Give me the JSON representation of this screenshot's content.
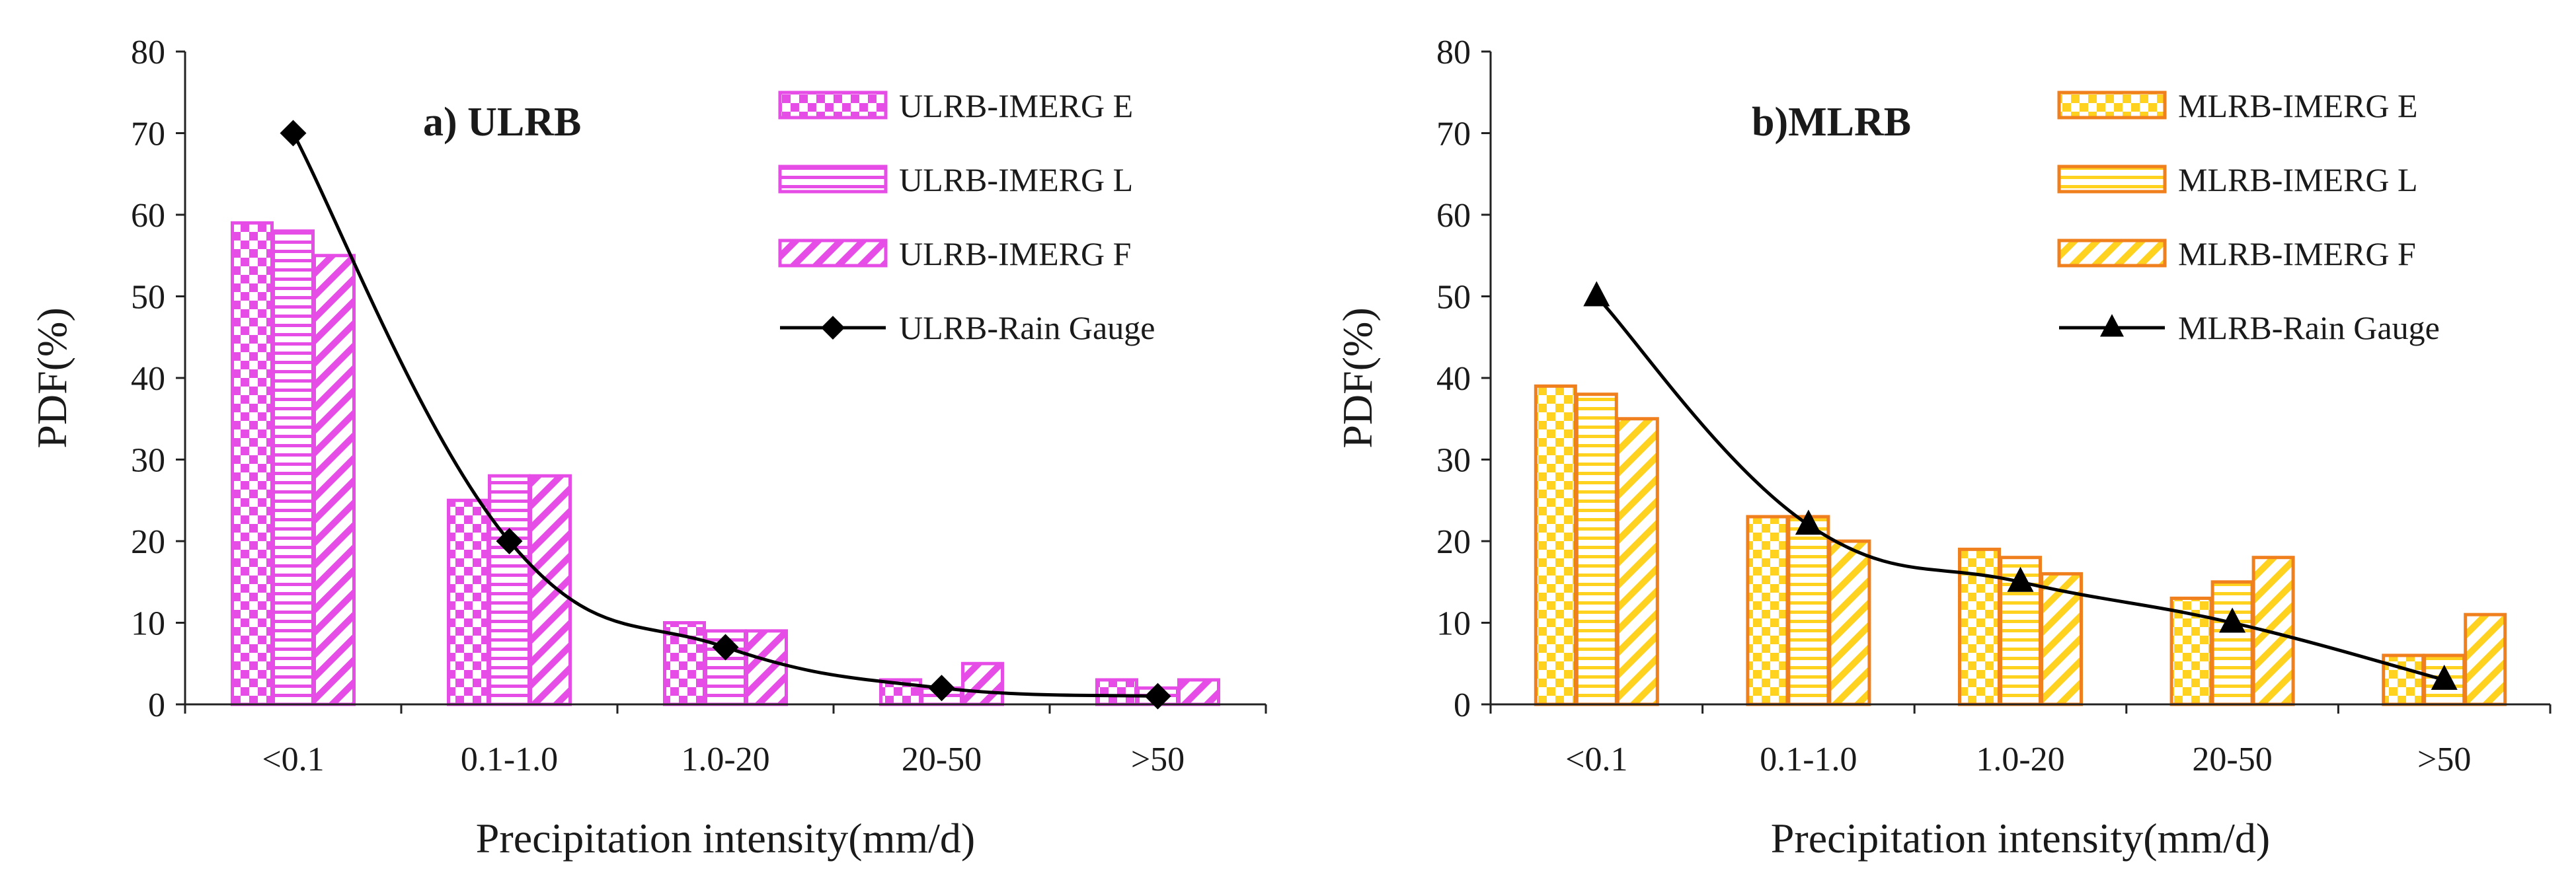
{
  "chart_data": [
    {
      "type": "bar",
      "panel_title": "a) ULRB",
      "categories": [
        "<0.1",
        "0.1-1.0",
        "1.0-20",
        "20-50",
        ">50"
      ],
      "xlabel": "Precipitation intensity(mm/d)",
      "ylabel": "PDF(%)",
      "ylim": [
        0,
        80
      ],
      "yticks": [
        "0",
        "10",
        "20",
        "30",
        "40",
        "50",
        "60",
        "70",
        "80"
      ],
      "grid": false,
      "legend_position": "top-right",
      "bar_color": "#e64ce6",
      "series": [
        {
          "name": "ULRB-IMERG E",
          "pattern": "checker",
          "values": [
            59,
            25,
            10,
            3,
            3
          ]
        },
        {
          "name": "ULRB-IMERG L",
          "pattern": "hlines",
          "values": [
            58,
            28,
            9,
            2,
            2
          ]
        },
        {
          "name": "ULRB-IMERG F",
          "pattern": "diagonal",
          "values": [
            55,
            28,
            9,
            5,
            3
          ]
        }
      ],
      "line_series": {
        "name": "ULRB-Rain Gauge",
        "marker": "diamond",
        "color": "#000000",
        "values": [
          70,
          20,
          7,
          2,
          1
        ]
      }
    },
    {
      "type": "bar",
      "panel_title": "b)MLRB",
      "categories": [
        "<0.1",
        "0.1-1.0",
        "1.0-20",
        "20-50",
        ">50"
      ],
      "xlabel": "Precipitation intensity(mm/d)",
      "ylabel": "PDF(%)",
      "ylim": [
        0,
        80
      ],
      "yticks": [
        "0",
        "10",
        "20",
        "30",
        "40",
        "50",
        "60",
        "70",
        "80"
      ],
      "grid": false,
      "legend_position": "top-right",
      "bar_color": "#f07f1e",
      "fill_color": "#ffd21f",
      "series": [
        {
          "name": "MLRB-IMERG E",
          "pattern": "checker",
          "values": [
            39,
            23,
            19,
            13,
            6
          ]
        },
        {
          "name": "MLRB-IMERG L",
          "pattern": "hlines",
          "values": [
            38,
            23,
            18,
            15,
            6
          ]
        },
        {
          "name": "MLRB-IMERG F",
          "pattern": "diagonal",
          "values": [
            35,
            20,
            16,
            18,
            11
          ]
        }
      ],
      "line_series": {
        "name": "MLRB-Rain Gauge",
        "marker": "triangle",
        "color": "#000000",
        "values": [
          50,
          22,
          15,
          10,
          3
        ]
      }
    }
  ]
}
